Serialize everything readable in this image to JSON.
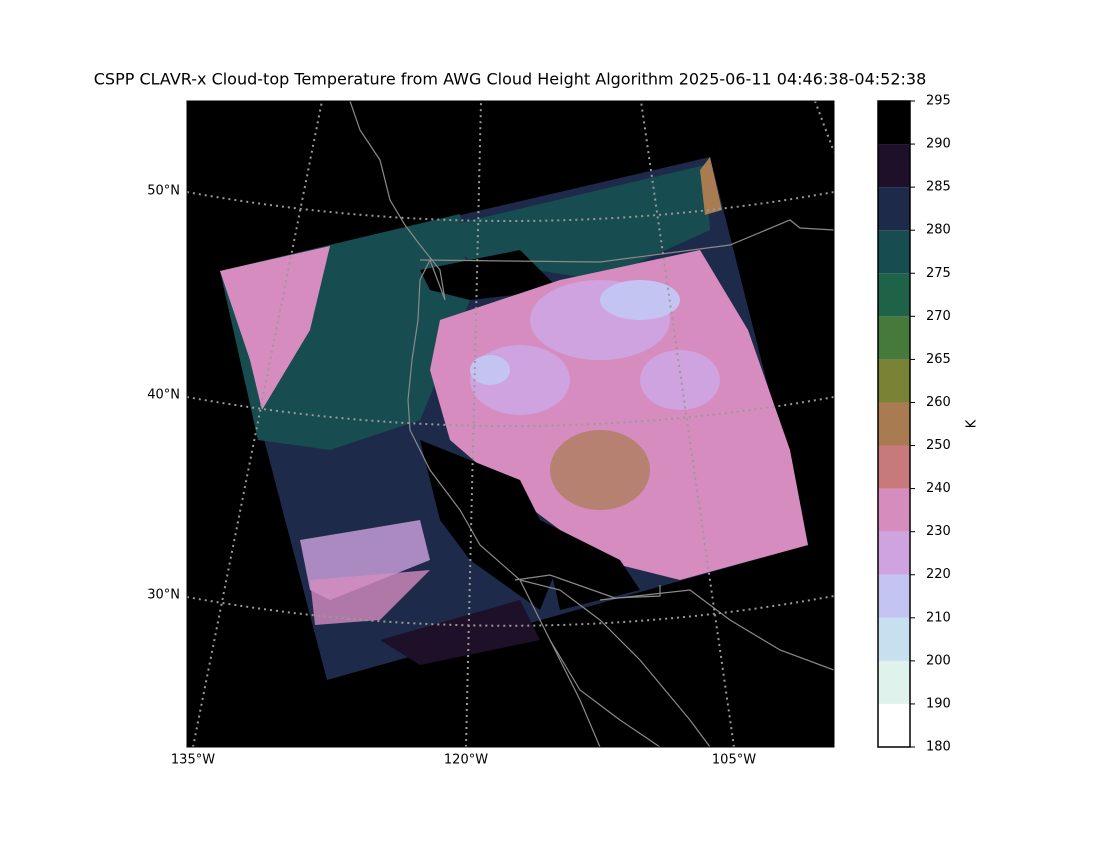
{
  "title": "CSPP CLAVR-x Cloud-top Temperature from AWG Cloud Height Algorithm 2025-06-11 04:46:38-04:52:38",
  "map": {
    "lat_labels": [
      "50°N",
      "40°N",
      "30°N"
    ],
    "lon_labels": [
      "135°W",
      "120°W",
      "105°W"
    ]
  },
  "colorbar": {
    "label": "K",
    "boundaries": [
      180,
      190,
      200,
      210,
      220,
      230,
      240,
      250,
      260,
      265,
      270,
      275,
      280,
      285,
      290,
      295
    ],
    "colors": [
      "#ffffff",
      "#dff3ec",
      "#c6e0f0",
      "#c4c4f2",
      "#cfa3e0",
      "#d68cbf",
      "#c87a7a",
      "#a87c50",
      "#7a8236",
      "#457a3a",
      "#1e6248",
      "#174c50",
      "#1d2a4a",
      "#1d1028",
      "#000000"
    ]
  }
}
